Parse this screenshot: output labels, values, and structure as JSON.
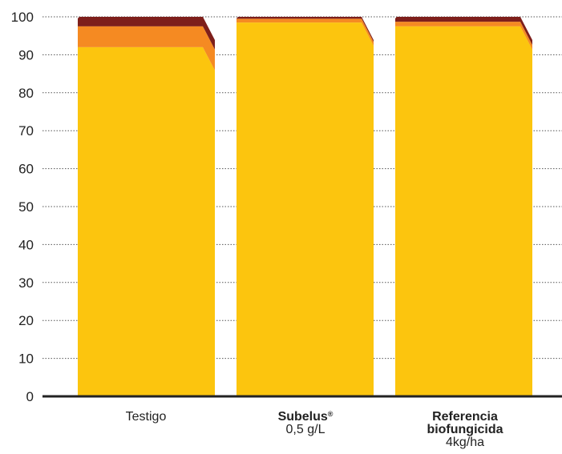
{
  "chart_data": {
    "type": "bar",
    "stacked": true,
    "ylim": [
      0,
      100
    ],
    "yticks": [
      0,
      10,
      20,
      30,
      40,
      50,
      60,
      70,
      80,
      90,
      100
    ],
    "grid": "horizontal-dotted",
    "categories": [
      {
        "bold": "",
        "sup": "",
        "lines": [
          "Testigo"
        ]
      },
      {
        "bold": "Subelus",
        "sup": "®",
        "lines": [
          "0,5 g/L"
        ]
      },
      {
        "bold": "Referencia biofungicida",
        "sup": "",
        "lines": [
          "4kg/ha"
        ]
      }
    ],
    "series": [
      {
        "color": "#FCC50E",
        "values": [
          92,
          98.5,
          97.5
        ]
      },
      {
        "color": "#F58A22",
        "values": [
          5.5,
          1.0,
          1.2
        ]
      },
      {
        "color": "#7E1F1B",
        "values": [
          2.5,
          0.5,
          1.3
        ]
      }
    ]
  }
}
